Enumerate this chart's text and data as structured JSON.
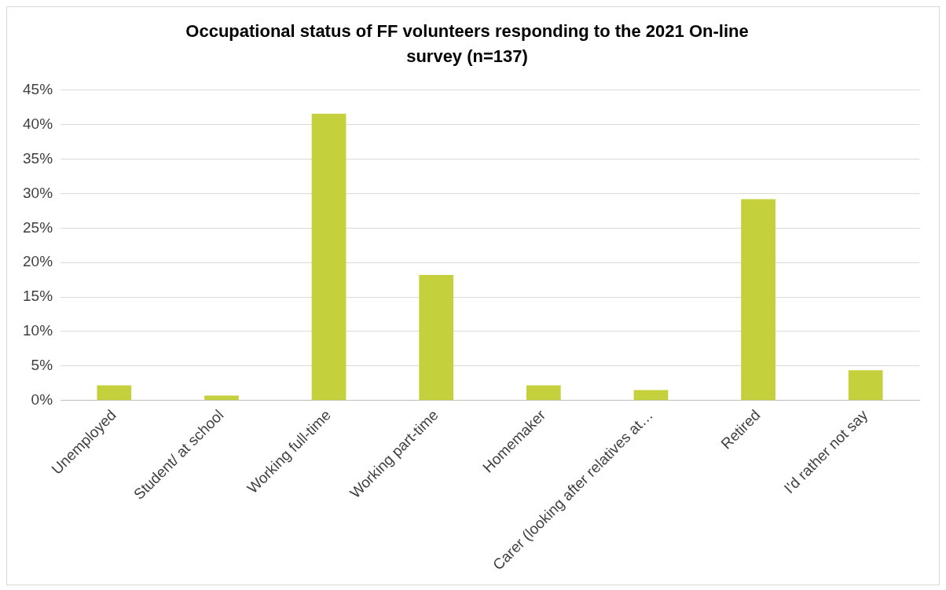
{
  "chart_data": {
    "type": "bar",
    "title": "Occupational status of FF volunteers responding to the 2021 On-line survey (n=137)",
    "categories": [
      "Unemployed",
      "Student/ at school",
      "Working full-time",
      "Working part-time",
      "Homemaker",
      "Carer (looking after relatives at…",
      "Retired",
      "I'd rather not say"
    ],
    "values": [
      2.2,
      0.7,
      41.6,
      18.2,
      2.2,
      1.5,
      29.2,
      4.4
    ],
    "color": "#c4d03c",
    "ylim": [
      0,
      45
    ],
    "yticks": [
      {
        "value": 0,
        "label": "0%"
      },
      {
        "value": 5,
        "label": "5%"
      },
      {
        "value": 10,
        "label": "10%"
      },
      {
        "value": 15,
        "label": "15%"
      },
      {
        "value": 20,
        "label": "20%"
      },
      {
        "value": 25,
        "label": "25%"
      },
      {
        "value": 30,
        "label": "30%"
      },
      {
        "value": 35,
        "label": "35%"
      },
      {
        "value": 40,
        "label": "40%"
      },
      {
        "value": 45,
        "label": "45%"
      }
    ],
    "grid": "y",
    "legend": false
  }
}
